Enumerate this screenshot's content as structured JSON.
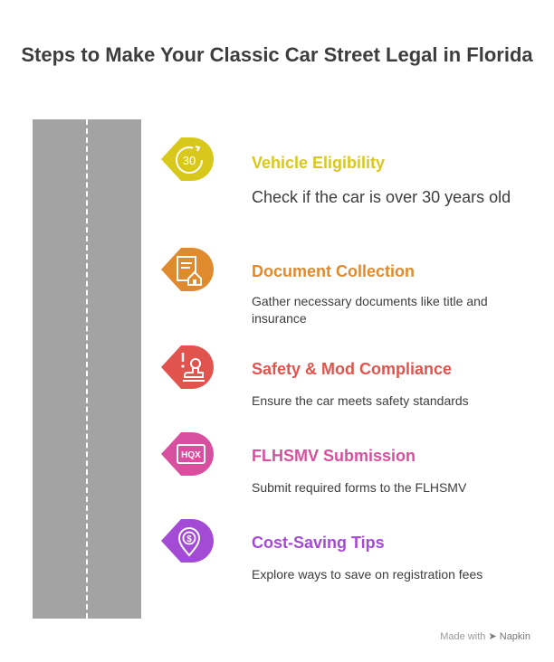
{
  "title": "Steps to Make Your Classic Car Street Legal in Florida",
  "steps": [
    {
      "heading": "Vehicle Eligibility",
      "description": "Check if the car is over 30 years old",
      "icon": "counter-30-icon",
      "icon_text": "30",
      "color": "#d9c81c"
    },
    {
      "heading": "Document Collection",
      "description": "Gather necessary documents like title and insurance",
      "icon": "document-house-icon",
      "color": "#e08a2e"
    },
    {
      "heading": "Safety & Mod Compliance",
      "description": "Ensure the car meets safety standards",
      "icon": "alert-stamp-icon",
      "color": "#e0544d"
    },
    {
      "heading": "FLHSMV Submission",
      "description": "Submit required forms to the FLHSMV",
      "icon": "hqx-form-icon",
      "icon_text": "HQX",
      "color": "#d94fa0"
    },
    {
      "heading": "Cost-Saving Tips",
      "description": "Explore ways to save on registration fees",
      "icon": "dollar-pin-icon",
      "color": "#a44bd6"
    }
  ],
  "footer": {
    "made_with": "Made with",
    "brand": "Napkin"
  }
}
